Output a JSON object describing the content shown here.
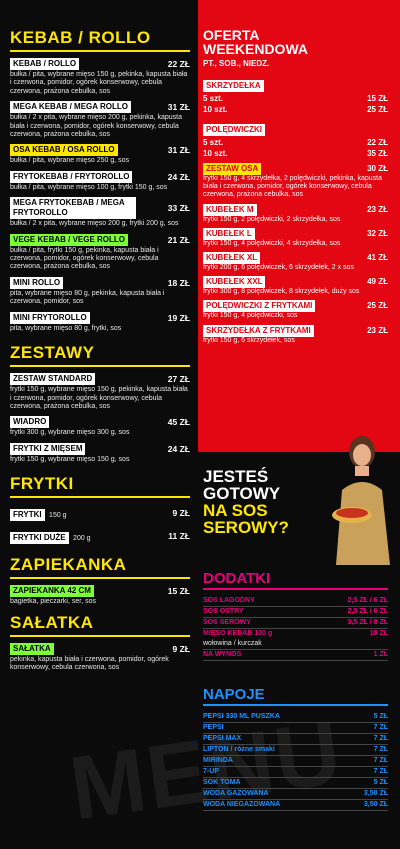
{
  "left": {
    "kebab": {
      "title": "KEBAB / ROLLO",
      "items": [
        {
          "name": "KEBAB / ROLLO",
          "price": "22 ZŁ",
          "desc": "bułka / pita,  wybrane mięso 150 g, pekinka, kapusta biała i czerwona, pomidor, ogórek konserwowy, cebula czerwona, prażona cebulka, sos"
        },
        {
          "name": "MEGA KEBAB / MEGA ROLLO",
          "price": "31 ZŁ",
          "desc": "bułka / 2 x pita, wybrane mięso 200 g, pekinka, kapusta biała i czerwona, pomidor, ogórek konserwowy, cebula czerwona, prażona cebulka, sos"
        },
        {
          "name": "OSA KEBAB / OSA ROLLO",
          "price": "31 ZŁ",
          "desc": "bułka / pita, wybrane mięso 250 g, sos"
        },
        {
          "name": "FRYTOKEBAB / FRYTOROLLO",
          "price": "24 ZŁ",
          "desc": "bułka / pita, wybrane mięso 100 g, frytki 150 g, sos"
        },
        {
          "name": "MEGA FRYTOKEBAB / MEGA FRYTOROLLO",
          "price": "33 ZŁ",
          "desc": "bułka / 2 x pita, wybrane mięso 200 g, frytki 200 g, sos"
        },
        {
          "name": "VEGE KEBAB / VEGE ROLLO",
          "price": "21 ZŁ",
          "desc": "bułka / pita, frytki 150 g, pekinka, kapusta biała i czerwona, pomidor, ogórek konserwowy, cebula czerwona, prażona cebulka, sos"
        },
        {
          "name": "MINI ROLLO",
          "price": "18 ZŁ",
          "desc": "pita, wybrane mięso 80 g, pekinka, kapusta biała i czerwona, pomidor, sos"
        },
        {
          "name": "MINI FRYTOROLLO",
          "price": "19 ZŁ",
          "desc": "pita, wybrane mięso 80 g, frytki, sos"
        }
      ]
    },
    "zestawy": {
      "title": "ZESTAWY",
      "items": [
        {
          "name": "ZESTAW STANDARD",
          "price": "27 ZŁ",
          "desc": "frytki 150 g, wybrane mięso 150 g, pekinka, kapusta biała i czerwona, pomidor, ogórek konserwowy, cebula czerwona, prażona cebulka, sos"
        },
        {
          "name": "WIADRO",
          "price": "45 ZŁ",
          "desc": "frytki 300 g, wybrane mięso 300 g, sos"
        },
        {
          "name": "FRYTKI Z MIĘSEM",
          "price": "24 ZŁ",
          "desc": "frytki 150 g, wybrane mięso 150 g, sos"
        }
      ]
    },
    "frytki": {
      "title": "FRYTKI",
      "items": [
        {
          "name": "FRYTKI",
          "weight": "150 g",
          "price": "9 ZŁ"
        },
        {
          "name": "FRYTKI DUŻE",
          "weight": "200 g",
          "price": "11 ZŁ"
        }
      ]
    },
    "zapiekanka": {
      "title": "ZAPIEKANKA",
      "item": {
        "name": "ZAPIEKANKA 42 CM",
        "price": "15 ZŁ",
        "desc": "bagietka, pieczarki, ser, sos"
      }
    },
    "salatka": {
      "title": "SAŁATKA",
      "item": {
        "name": "SAŁATKA",
        "price": "9 ZŁ",
        "desc": "pekinka, kapusta biała i czerwona, pomidor, ogórek konserwowy, cebula czerwona, sos"
      }
    }
  },
  "right": {
    "title1": "OFERTA",
    "title2": "WEEKENDOWA",
    "subtitle": "PT., SOB., NIEDZ.",
    "skrzydelka": {
      "name": "SKRZYDEŁKA",
      "rows": [
        {
          "label": "5 szt.",
          "price": "15 ZŁ"
        },
        {
          "label": "10 szt.",
          "price": "25 ZŁ"
        }
      ]
    },
    "poledwiczki": {
      "name": "POLĘDWICZKI",
      "rows": [
        {
          "label": "5 szt.",
          "price": "22 ZŁ"
        },
        {
          "label": "10 szt.",
          "price": "35 ZŁ"
        }
      ]
    },
    "items": [
      {
        "name": "ZESTAW OSA",
        "price": "30 ZŁ",
        "desc": "frytki 150 g, 4 skrzydełka, 2 polędwiczki, pekinka, kapusta biała i czerwona, pomidor, ogórek konserwowy, cebula czerwona, prażona cebulka, sos",
        "yellow": true
      },
      {
        "name": "KUBEŁEK M",
        "price": "23 ZŁ",
        "desc": "frytki 150 g, 2 polędwiczki, 2 skrzydełka, sos"
      },
      {
        "name": "KUBEŁEK L",
        "price": "32 ZŁ",
        "desc": "frytki 150 g, 4 polędwiczki, 4 skrzydełka, sos"
      },
      {
        "name": "KUBEŁEK XL",
        "price": "41 ZŁ",
        "desc": "frytki 200 g, 6 polędwiczek, 6 skrzydełek, 2 x sos"
      },
      {
        "name": "KUBEŁEK XXL",
        "price": "49 ZŁ",
        "desc": "frytki 300 g, 8 polędwiczek, 8 skrzydełek, duży sos"
      },
      {
        "name": "POLĘDWICZKI Z FRYTKAMI",
        "price": "25 ZŁ",
        "desc": "frytki 150 g, 4 polędwiczki, sos"
      },
      {
        "name": "SKRZYDEŁKA Z FRYTKAMI",
        "price": "23 ZŁ",
        "desc": "frytki 150 g, 6 skrzydełek, sos"
      }
    ],
    "promo": {
      "line1": "JESTEŚ",
      "line2": "GOTOWY",
      "line3": "NA SOS",
      "line4": "SEROWY?"
    },
    "dodatki": {
      "title": "DODATKI",
      "rows": [
        {
          "name": "SOS ŁAGODNY",
          "price": "2,5 ZŁ / 6 ZŁ"
        },
        {
          "name": "SOS OSTRY",
          "price": "2,5 ZŁ / 6 ZŁ"
        },
        {
          "name": "SOS SEROWY",
          "price": "3,5 ZŁ / 8 ZŁ"
        },
        {
          "name": "MIĘSO KEBAB 100 g",
          "price": "10 ZŁ"
        },
        {
          "name": "wołowina / kurczak",
          "price": ""
        },
        {
          "name": "NA WYNOS",
          "price": "1 ZŁ"
        }
      ]
    },
    "napoje": {
      "title": "NAPOJE",
      "rows": [
        {
          "name": "PEPSI 330 ML PUSZKA",
          "price": "5 ZŁ"
        },
        {
          "name": "PEPSI",
          "price": "7 ZŁ"
        },
        {
          "name": "PEPSI MAX",
          "price": "7 ZŁ"
        },
        {
          "name": "LIPTON / różne smaki",
          "price": "7 ZŁ"
        },
        {
          "name": "MIRINDA",
          "price": "7 ZŁ"
        },
        {
          "name": "7-UP",
          "price": "7 ZŁ"
        },
        {
          "name": "SOK TOMA",
          "price": "5 ZŁ"
        },
        {
          "name": "WODA GAZOWANA",
          "price": "3,50 ZŁ"
        },
        {
          "name": "WODA NIEGAZOWANA",
          "price": "3,50 ZŁ"
        }
      ]
    }
  },
  "watermark": "MENU",
  "colors": {
    "red": "#e30613",
    "yellow": "#ffe600",
    "magenta": "#e6007e",
    "blue": "#1e90ff",
    "green": "#7dff3a"
  }
}
